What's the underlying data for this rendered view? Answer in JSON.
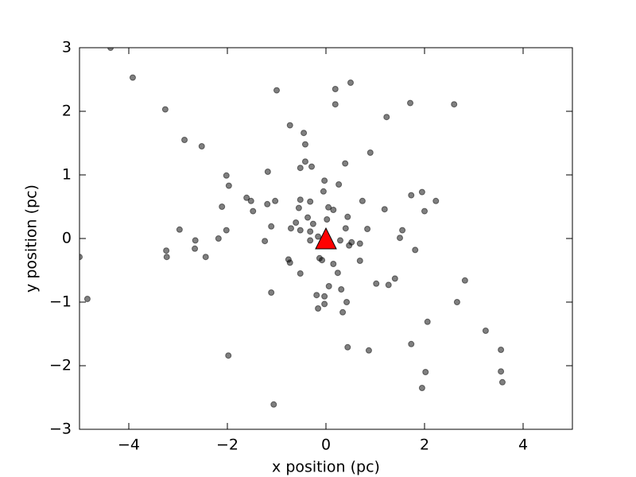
{
  "chart_data": {
    "type": "scatter",
    "xlabel": "x position (pc)",
    "ylabel": "y position (pc)",
    "x": [
      -4.37,
      -3.92,
      -3.26,
      -2.87,
      -2.52,
      -1.0,
      0.5,
      0.19,
      0.19,
      1.23,
      1.71,
      2.6,
      -0.73,
      -0.45,
      -0.42,
      0.9,
      -0.42,
      -0.29,
      -0.52,
      0.39,
      -1.18,
      -2.02,
      -1.97,
      -0.03,
      0.26,
      -0.05,
      1.73,
      1.95,
      -1.61,
      -1.52,
      -1.03,
      -0.52,
      -0.32,
      0.74,
      2.23,
      -2.11,
      -1.48,
      -1.19,
      -0.55,
      0.05,
      0.15,
      1.19,
      2.0,
      -0.61,
      -0.37,
      0.02,
      0.44,
      -2.97,
      -2.02,
      -1.11,
      -0.71,
      -0.52,
      -0.26,
      -0.32,
      0.4,
      0.84,
      1.55,
      1.5,
      -2.18,
      -2.65,
      -1.24,
      -0.32,
      -0.16,
      0.29,
      0.52,
      0.69,
      0.47,
      -5.0,
      -3.24,
      -3.23,
      -2.66,
      -2.44,
      1.81,
      -0.76,
      -0.73,
      -0.13,
      -0.08,
      0.15,
      0.69,
      -0.52,
      0.24,
      1.4,
      2.82,
      1.02,
      1.27,
      0.06,
      0.31,
      -4.84,
      -1.11,
      -0.19,
      -0.03,
      -0.03,
      0.42,
      2.66,
      -0.16,
      0.34,
      2.06,
      3.24,
      0.44,
      0.87,
      1.73,
      3.55,
      -1.98,
      2.02,
      3.55,
      3.58,
      1.95,
      -1.06
    ],
    "y": [
      3.0,
      2.53,
      2.03,
      1.55,
      1.45,
      2.33,
      2.45,
      2.35,
      2.11,
      1.91,
      2.13,
      2.11,
      1.78,
      1.66,
      1.48,
      1.35,
      1.21,
      1.13,
      1.11,
      1.18,
      1.05,
      0.99,
      0.83,
      0.91,
      0.85,
      0.74,
      0.68,
      0.73,
      0.64,
      0.59,
      0.59,
      0.61,
      0.58,
      0.59,
      0.59,
      0.5,
      0.43,
      0.54,
      0.48,
      0.49,
      0.45,
      0.46,
      0.43,
      0.25,
      0.33,
      0.3,
      0.34,
      0.14,
      0.13,
      0.19,
      0.16,
      0.13,
      0.23,
      0.11,
      0.16,
      0.15,
      0.13,
      0.01,
      0.0,
      -0.03,
      -0.04,
      -0.03,
      0.03,
      -0.03,
      -0.06,
      -0.08,
      -0.11,
      -0.29,
      -0.19,
      -0.29,
      -0.16,
      -0.29,
      -0.18,
      -0.33,
      -0.38,
      -0.31,
      -0.34,
      -0.4,
      -0.35,
      -0.55,
      -0.54,
      -0.63,
      -0.66,
      -0.71,
      -0.73,
      -0.75,
      -0.8,
      -0.95,
      -0.85,
      -0.89,
      -0.91,
      -1.03,
      -1.0,
      -1.0,
      -1.1,
      -1.16,
      -1.31,
      -1.45,
      -1.71,
      -1.76,
      -1.66,
      -1.75,
      -1.84,
      -2.1,
      -2.09,
      -2.26,
      -2.35,
      -2.61
    ],
    "color": "#000000",
    "alpha": 0.5,
    "marker": {
      "x": 0,
      "y": 0,
      "color": "#ff0000",
      "shape": "triangle"
    },
    "xlim": [
      -5,
      5
    ],
    "ylim": [
      -3,
      3
    ],
    "xticks": [
      {
        "value": -4,
        "label": "−4"
      },
      {
        "value": -2,
        "label": "−2"
      },
      0,
      2,
      4
    ],
    "yticks": [
      {
        "value": -3,
        "label": "−3"
      },
      {
        "value": -2,
        "label": "−2"
      },
      {
        "value": -1,
        "label": "−1"
      },
      0,
      1,
      2,
      3
    ],
    "grid": false
  }
}
